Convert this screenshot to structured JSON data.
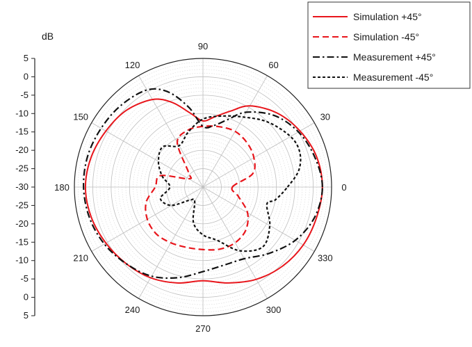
{
  "chart_data": {
    "type": "polar-line",
    "radial_axis": {
      "unit_label": "dB",
      "tick_labels_top": [
        "5",
        "0",
        "-5",
        "-10",
        "-15",
        "-20",
        "-25"
      ],
      "center_label": "-30",
      "tick_labels_bottom": [
        "-25",
        "-20",
        "-15",
        "-10",
        "-5",
        "0",
        "5"
      ],
      "range": [
        -30,
        5
      ],
      "major_step": 5
    },
    "angular_axis": {
      "labels": [
        "0",
        "30",
        "60",
        "90",
        "120",
        "150",
        "180",
        "210",
        "240",
        "270",
        "300",
        "330"
      ],
      "step_deg": 30
    },
    "grid": true,
    "legend_position": "top-right",
    "series": [
      {
        "name": "Simulation +45°",
        "color": "#e8151b",
        "dash": "solid",
        "angles": [
          0,
          15,
          30,
          45,
          60,
          70,
          80,
          90,
          100,
          110,
          120,
          135,
          150,
          165,
          180,
          195,
          210,
          225,
          240,
          255,
          270,
          285,
          300,
          315,
          330,
          345,
          360
        ],
        "values": [
          2.5,
          2.0,
          0.5,
          -1.5,
          -4.5,
          -8.0,
          -10.5,
          -12.0,
          -9.5,
          -5.5,
          -2.5,
          -0.5,
          0.5,
          1.5,
          2.0,
          1.5,
          0.5,
          -0.5,
          -1.5,
          -3.0,
          -4.5,
          -3.0,
          -1.0,
          0.5,
          1.5,
          2.0,
          2.5
        ]
      },
      {
        "name": "Simulation -45°",
        "color": "#e8151b",
        "dash": "dashed",
        "angles": [
          0,
          15,
          30,
          45,
          60,
          75,
          90,
          105,
          120,
          135,
          150,
          165,
          180,
          195,
          210,
          225,
          240,
          255,
          270,
          285,
          300,
          315,
          330,
          345,
          360
        ],
        "values": [
          -22.0,
          -16.0,
          -14.0,
          -13.0,
          -12.5,
          -13.0,
          -13.5,
          -14.0,
          -16.0,
          -24.5,
          -25.5,
          -18.0,
          -17.0,
          -14.0,
          -12.5,
          -12.0,
          -12.5,
          -13.0,
          -13.0,
          -12.5,
          -12.5,
          -13.5,
          -16.0,
          -20.0,
          -22.0
        ]
      },
      {
        "name": "Measurement +45°",
        "color": "#111111",
        "dash": "dashdot",
        "angles": [
          0,
          15,
          30,
          45,
          60,
          70,
          80,
          90,
          100,
          110,
          120,
          135,
          150,
          165,
          180,
          195,
          210,
          225,
          240,
          255,
          270,
          285,
          300,
          315,
          330,
          345,
          360
        ],
        "values": [
          2.5,
          1.5,
          0.0,
          -2.5,
          -6.5,
          -10.5,
          -13.0,
          -13.5,
          -8.0,
          -2.5,
          0.5,
          1.5,
          2.0,
          2.5,
          2.5,
          2.0,
          1.0,
          -0.5,
          -2.0,
          -4.5,
          -7.0,
          -8.0,
          -7.5,
          -4.5,
          -1.0,
          1.5,
          2.5
        ]
      },
      {
        "name": "Measurement -45°",
        "color": "#111111",
        "dash": "dotted",
        "angles": [
          0,
          10,
          20,
          30,
          45,
          60,
          75,
          90,
          105,
          120,
          135,
          150,
          165,
          180,
          195,
          210,
          225,
          240,
          255,
          270,
          285,
          300,
          315,
          330,
          345,
          350,
          360
        ],
        "values": [
          -7.0,
          -3.5,
          -2.0,
          -2.5,
          -5.0,
          -8.0,
          -10.0,
          -11.5,
          -14.5,
          -17.0,
          -14.5,
          -16.0,
          -18.5,
          -21.0,
          -18.0,
          -20.0,
          -25.0,
          -25.5,
          -20.0,
          -17.0,
          -15.0,
          -10.0,
          -7.0,
          -9.0,
          -12.0,
          -10.0,
          -7.0
        ]
      }
    ]
  }
}
